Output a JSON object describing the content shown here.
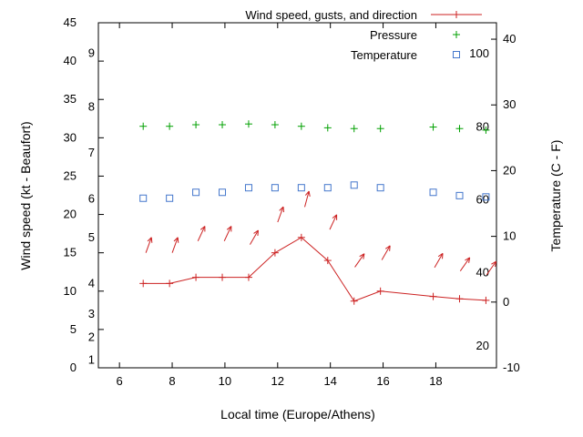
{
  "figure": {
    "xlabel": "Local time (Europe/Athens)",
    "ylabel_left": "Wind speed (kt - Beaufort)",
    "ylabel_right": "Temperature (C - F)",
    "background": "#ffffff"
  },
  "legend": {
    "entries": [
      {
        "label": "Wind speed, gusts, and direction",
        "marker": "line-plus",
        "color": "#cc2222"
      },
      {
        "label": "Pressure",
        "marker": "plus",
        "color": "#00a000"
      },
      {
        "label": "Temperature",
        "marker": "open-square",
        "color": "#4477cc"
      }
    ]
  },
  "chart_data": {
    "type": "line",
    "title": "",
    "xlabel": "Local time (Europe/Athens)",
    "x_axis": {
      "lim": [
        5.2,
        20.3
      ],
      "ticks": [
        6,
        8,
        10,
        12,
        14,
        16,
        18
      ]
    },
    "left_axis": {
      "label": "Wind speed (kt - Beaufort)",
      "lim": [
        0,
        45
      ],
      "ticks": [
        0,
        5,
        10,
        15,
        20,
        25,
        30,
        35,
        40,
        45
      ],
      "beaufort_labels": [
        {
          "label": "1",
          "kt": 1
        },
        {
          "label": "2",
          "kt": 4
        },
        {
          "label": "3",
          "kt": 7
        },
        {
          "label": "4",
          "kt": 11
        },
        {
          "label": "5",
          "kt": 17
        },
        {
          "label": "6",
          "kt": 22
        },
        {
          "label": "7",
          "kt": 28
        },
        {
          "label": "8",
          "kt": 34
        },
        {
          "label": "9",
          "kt": 41
        }
      ]
    },
    "right_axis": {
      "label": "Temperature (C - F)",
      "lim_c": [
        -10,
        42.5
      ],
      "ticks_c": [
        -10,
        0,
        10,
        20,
        30,
        40
      ],
      "fahrenheit_labels": [
        {
          "label": "20",
          "f": 20
        },
        {
          "label": "40",
          "f": 40
        },
        {
          "label": "60",
          "f": 60
        },
        {
          "label": "80",
          "f": 80
        },
        {
          "label": "100",
          "f": 100
        }
      ]
    },
    "x": [
      6.9,
      7.9,
      8.9,
      9.9,
      10.9,
      11.9,
      12.9,
      13.9,
      14.9,
      15.9,
      17.9,
      18.9,
      19.9
    ],
    "series": [
      {
        "name": "Wind speed, gusts, and direction",
        "color": "#cc2222",
        "wind_speed_kt": [
          11,
          11,
          11.8,
          11.8,
          11.8,
          15,
          17,
          14,
          8.7,
          10,
          9.3,
          9,
          8.8
        ],
        "gust_kt": [
          16,
          16,
          17.5,
          17.5,
          17,
          20,
          22,
          19,
          14,
          15,
          14,
          13.5,
          13
        ],
        "direction_deg_from_north": [
          20,
          20,
          25,
          25,
          30,
          20,
          15,
          25,
          35,
          30,
          30,
          35,
          35
        ]
      },
      {
        "name": "Pressure",
        "color": "#00a000",
        "plotted_level_left_axis_units": [
          31.5,
          31.5,
          31.7,
          31.7,
          31.8,
          31.7,
          31.5,
          31.3,
          31.2,
          31.2,
          31.4,
          31.2,
          31.0
        ]
      },
      {
        "name": "Temperature",
        "color": "#4477cc",
        "values_c": [
          15.8,
          15.8,
          16.7,
          16.7,
          17.4,
          17.4,
          17.4,
          17.4,
          17.8,
          17.4,
          16.7,
          16.2,
          16.0
        ]
      }
    ],
    "legend_position": "top-center",
    "grid": false
  }
}
